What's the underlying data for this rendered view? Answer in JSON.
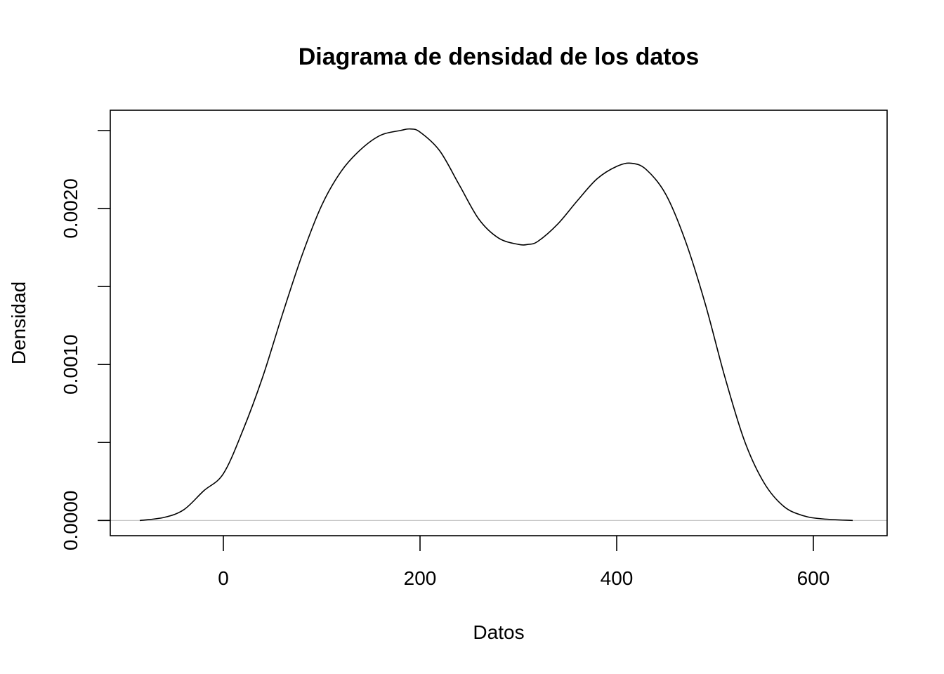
{
  "chart_data": {
    "type": "line",
    "title": "Diagrama de densidad de los datos",
    "xlabel": "Datos",
    "ylabel": "Densidad",
    "xlim": [
      -115,
      675
    ],
    "ylim": [
      -9.75e-05,
      0.00263
    ],
    "xticks": [
      0,
      200,
      400,
      600
    ],
    "xtick_labels": [
      "0",
      "200",
      "400",
      "600"
    ],
    "yticks": [
      0,
      0.0005,
      0.001,
      0.0015,
      0.002,
      0.0025
    ],
    "ytick_labels": [
      "0.0000",
      "",
      "0.0010",
      "",
      "0.0020",
      ""
    ],
    "grid": false,
    "baseline": 0,
    "series": [
      {
        "x": [
          -85,
          -60,
          -40,
          -20,
          0,
          20,
          40,
          60,
          80,
          100,
          120,
          140,
          160,
          180,
          190,
          200,
          220,
          240,
          260,
          280,
          300,
          310,
          320,
          340,
          360,
          380,
          400,
          415,
          430,
          450,
          470,
          490,
          510,
          530,
          550,
          570,
          590,
          610,
          640
        ],
        "y": [
          0.0,
          2e-05,
          7e-05,
          0.00019,
          0.0003,
          0.00058,
          0.00092,
          0.00132,
          0.0017,
          0.00202,
          0.00224,
          0.00238,
          0.00247,
          0.0025,
          0.00251,
          0.00249,
          0.00237,
          0.00215,
          0.00193,
          0.00181,
          0.00177,
          0.00177,
          0.00179,
          0.0019,
          0.00205,
          0.00219,
          0.00227,
          0.00229,
          0.00225,
          0.00209,
          0.00179,
          0.00139,
          0.00092,
          0.00051,
          0.00024,
          9e-05,
          3e-05,
          1e-05,
          0.0
        ]
      }
    ]
  }
}
